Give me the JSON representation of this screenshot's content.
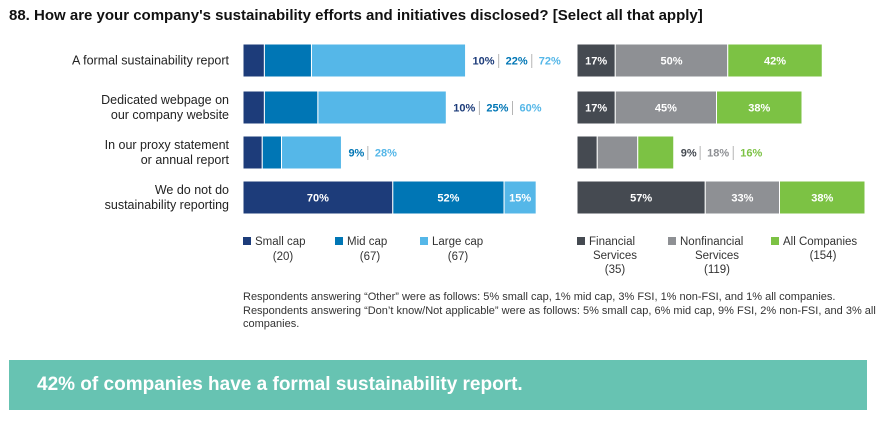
{
  "title": "88. How are your company's sustainability efforts and initiatives disclosed? [Select all that apply]",
  "footnote": "Respondents answering “Other” were as follows: 5% small cap, 1% mid cap, 3% FSI, 1% non-FSI, and 1% all companies. Respondents answering “Don’t know/Not applicable” were as follows: 5% small cap, 6% mid cap, 9% FSI, 2% non-FSI, and 3% all companies.",
  "banner": "42% of companies have a formal sustainability report.",
  "banner_color": "#67c3b2",
  "chart_data": [
    {
      "type": "bar",
      "orientation": "horizontal",
      "stacked": true,
      "categories": [
        [
          "A formal sustainability report"
        ],
        [
          "Dedicated webpage on",
          "our company website"
        ],
        [
          "In our proxy statement",
          "or annual report"
        ],
        [
          "We do not do",
          "sustainability reporting"
        ]
      ],
      "series": [
        {
          "name": "Small cap",
          "count": "(20)",
          "color": "#1d3c7a",
          "values": [
            10,
            10,
            9,
            70
          ]
        },
        {
          "name": "Mid cap",
          "count": "(67)",
          "color": "#0076b5",
          "values": [
            22,
            25,
            9,
            52
          ]
        },
        {
          "name": "Large cap",
          "count": "(67)",
          "color": "#55b7e8",
          "values": [
            72,
            60,
            28,
            15
          ]
        }
      ],
      "value_labels": [
        [
          "10%",
          "22%",
          "72%"
        ],
        [
          "10%",
          "25%",
          "60%"
        ],
        [
          "",
          "9%",
          "28%"
        ],
        [
          "70%",
          "52%",
          "15%"
        ]
      ],
      "outside_labels": [
        true,
        true,
        true,
        false
      ]
    },
    {
      "type": "bar",
      "orientation": "horizontal",
      "stacked": true,
      "series": [
        {
          "name": "Financial Services",
          "name_lines": [
            "Financial",
            "Services"
          ],
          "count": "(35)",
          "color": "#454a51",
          "values": [
            17,
            17,
            9,
            57
          ]
        },
        {
          "name": "Nonfinancial Services",
          "name_lines": [
            "Nonfinancial",
            "Services"
          ],
          "count": "(119)",
          "color": "#8e9094",
          "values": [
            50,
            45,
            18,
            33
          ]
        },
        {
          "name": "All Companies",
          "name_lines": [
            "All Companies"
          ],
          "count": "(154)",
          "color": "#7cc244",
          "values": [
            42,
            38,
            16,
            38
          ]
        }
      ],
      "value_labels": [
        [
          "17%",
          "50%",
          "42%"
        ],
        [
          "17%",
          "45%",
          "38%"
        ],
        [
          "9%",
          "18%",
          "16%"
        ],
        [
          "57%",
          "33%",
          "38%"
        ]
      ],
      "outside_labels": [
        false,
        false,
        true,
        false
      ]
    }
  ]
}
